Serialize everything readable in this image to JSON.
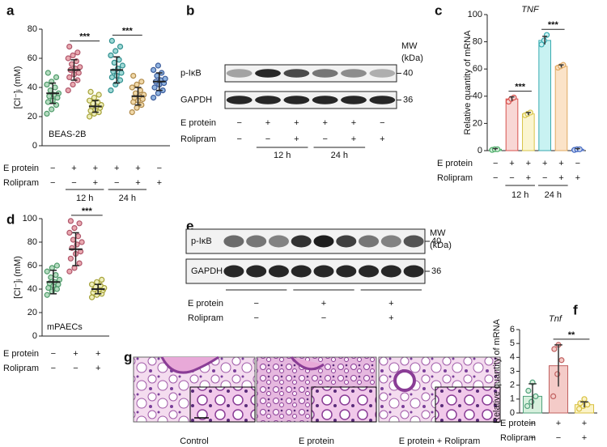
{
  "chart_data": [
    {
      "type": "dot",
      "panel": "a",
      "y_label": "[Cl⁻]ᵢ (mM)",
      "annotation": "BEAS-2B",
      "ylim": [
        0,
        80
      ],
      "yticks": [
        0,
        20,
        40,
        60,
        80
      ],
      "groups": [
        {
          "color": "#4f9a6a",
          "fill": "#b5dcc0",
          "mean": 36,
          "sd": 7,
          "values": [
            22,
            25,
            28,
            30,
            31,
            33,
            34,
            35,
            36,
            38,
            40,
            42,
            44,
            47,
            50
          ]
        },
        {
          "color": "#b0566b",
          "fill": "#e9a9b0",
          "mean": 52,
          "sd": 7,
          "values": [
            38,
            42,
            45,
            47,
            49,
            50,
            52,
            53,
            54,
            56,
            58,
            60,
            62,
            64,
            68
          ]
        },
        {
          "color": "#a6a23a",
          "fill": "#eeeebb",
          "mean": 27,
          "sd": 4,
          "values": [
            20,
            22,
            23,
            24,
            25,
            26,
            27,
            27,
            28,
            29,
            30,
            31,
            33,
            35,
            37
          ]
        },
        {
          "color": "#2f8f8f",
          "fill": "#9fd9d6",
          "mean": 52,
          "sd": 9,
          "values": [
            38,
            42,
            45,
            47,
            48,
            50,
            51,
            53,
            55,
            57,
            59,
            62,
            65,
            68,
            72
          ]
        },
        {
          "color": "#b08a4a",
          "fill": "#f0d8a8",
          "mean": 34,
          "sd": 6,
          "values": [
            23,
            26,
            28,
            30,
            31,
            32,
            33,
            34,
            35,
            36,
            38,
            40,
            42,
            44,
            48
          ]
        },
        {
          "color": "#3b5b9a",
          "fill": "#8fb3e0",
          "mean": 44,
          "sd": 6,
          "values": [
            33,
            36,
            38,
            40,
            42,
            43,
            44,
            45,
            46,
            48,
            50,
            52,
            55
          ]
        }
      ],
      "conditions": [
        {
          "label": "E protein",
          "signs": [
            "−",
            "+",
            "+",
            "+",
            "+",
            "−"
          ]
        },
        {
          "label": "Rolipram",
          "signs": [
            "−",
            "−",
            "+",
            "−",
            "+",
            "+"
          ]
        }
      ],
      "time_labels": [
        {
          "text": "12 h",
          "groups": [
            1,
            2
          ]
        },
        {
          "text": "24 h",
          "groups": [
            3,
            4
          ]
        }
      ],
      "significance": [
        {
          "text": "***",
          "groups": [
            1,
            2
          ]
        },
        {
          "text": "***",
          "groups": [
            3,
            4
          ]
        }
      ]
    },
    {
      "type": "bar",
      "panel": "c",
      "title": "TNF",
      "y_label": "Relative quantity of mRNA",
      "ylim": [
        0,
        100
      ],
      "yticks": [
        0,
        20,
        40,
        60,
        80,
        100
      ],
      "groups": [
        {
          "color": "#4fae6b",
          "fill": "#d7f0dd",
          "mean": 1,
          "sd": 0.5,
          "values": [
            0.5,
            1,
            1
          ]
        },
        {
          "color": "#d9534f",
          "fill": "#f8d7d5",
          "mean": 38,
          "sd": 1.5,
          "values": [
            36,
            38,
            39
          ]
        },
        {
          "color": "#d8c64a",
          "fill": "#fbf5d0",
          "mean": 27,
          "sd": 1,
          "values": [
            26,
            27,
            28
          ]
        },
        {
          "color": "#38aab0",
          "fill": "#c8f2f2",
          "mean": 81,
          "sd": 3,
          "values": [
            78,
            81,
            85
          ]
        },
        {
          "color": "#e0a860",
          "fill": "#fbe3c8",
          "mean": 62,
          "sd": 1,
          "values": [
            61,
            62,
            63
          ]
        },
        {
          "color": "#4066c0",
          "fill": "#d2def7",
          "mean": 1,
          "sd": 0.5,
          "values": [
            0.5,
            1,
            1
          ]
        }
      ],
      "conditions": [
        {
          "label": "E protein",
          "signs": [
            "−",
            "+",
            "+",
            "+",
            "+",
            "−"
          ]
        },
        {
          "label": "Rolipram",
          "signs": [
            "−",
            "−",
            "+",
            "−",
            "+",
            "+"
          ]
        }
      ],
      "time_labels": [
        {
          "text": "12 h",
          "groups": [
            1,
            2
          ]
        },
        {
          "text": "24 h",
          "groups": [
            3,
            4
          ]
        }
      ],
      "significance": [
        {
          "text": "***",
          "groups": [
            1,
            2
          ]
        },
        {
          "text": "***",
          "groups": [
            3,
            4
          ]
        }
      ]
    },
    {
      "type": "dot",
      "panel": "d",
      "y_label": "[Cl⁻]ᵢ (mM)",
      "annotation": "mPAECs",
      "ylim": [
        0,
        100
      ],
      "yticks": [
        0,
        20,
        40,
        60,
        80,
        100
      ],
      "groups": [
        {
          "color": "#4f9a6a",
          "fill": "#b5dcc0",
          "mean": 46,
          "sd": 10,
          "values": [
            35,
            38,
            40,
            41,
            43,
            44,
            45,
            46,
            48,
            50,
            52,
            55,
            58,
            60
          ]
        },
        {
          "color": "#b0566b",
          "fill": "#e9a9b0",
          "mean": 74,
          "sd": 14,
          "values": [
            55,
            58,
            62,
            66,
            70,
            72,
            75,
            78,
            80,
            82,
            85,
            88,
            92,
            96,
            98
          ]
        },
        {
          "color": "#a6a23a",
          "fill": "#eeeebb",
          "mean": 40,
          "sd": 4,
          "values": [
            33,
            35,
            36,
            37,
            38,
            39,
            40,
            40,
            41,
            42,
            43,
            44,
            46,
            48
          ]
        }
      ],
      "conditions": [
        {
          "label": "E protein",
          "signs": [
            "−",
            "+",
            "+"
          ]
        },
        {
          "label": "Rolipram",
          "signs": [
            "−",
            "−",
            "+"
          ]
        }
      ],
      "time_labels": [],
      "significance": [
        {
          "text": "***",
          "groups": [
            1,
            2
          ]
        }
      ]
    },
    {
      "type": "bar",
      "panel": "f",
      "title": "Tnf",
      "y_label": "Relative quantity of mRNA",
      "ylim": [
        0,
        6
      ],
      "yticks": [
        0,
        1,
        2,
        3,
        4,
        5,
        6
      ],
      "groups": [
        {
          "color": "#4fa07a",
          "fill": "#d7f0dd",
          "mean": 1.2,
          "sd": 0.9,
          "values": [
            0.5,
            0.8,
            1.2,
            1.6,
            2.2
          ]
        },
        {
          "color": "#c0605f",
          "fill": "#f4cbc8",
          "mean": 3.4,
          "sd": 1.5,
          "values": [
            1.2,
            2.8,
            3.8,
            4.6,
            4.9
          ]
        },
        {
          "color": "#d8c040",
          "fill": "#fbf3c8",
          "mean": 0.6,
          "sd": 0.2,
          "values": [
            0.3,
            0.5,
            0.6,
            0.7,
            1.0
          ]
        }
      ],
      "conditions": [
        {
          "label": "E protein",
          "signs": [
            "−",
            "+",
            "+"
          ]
        },
        {
          "label": "Rolipram",
          "signs": [
            "−",
            "−",
            "+"
          ]
        }
      ],
      "time_labels": [],
      "significance": [
        {
          "text": "**",
          "groups": [
            1,
            2
          ]
        }
      ]
    }
  ],
  "blots": [
    {
      "panel": "b",
      "mw": [
        "MW",
        "(kDa)"
      ],
      "rows": [
        {
          "label": "p-IκB",
          "marker": "40",
          "intensity": [
            0.35,
            0.9,
            0.75,
            0.55,
            0.45,
            0.3
          ]
        },
        {
          "label": "GAPDH",
          "marker": "36",
          "intensity": [
            0.9,
            0.9,
            0.9,
            0.9,
            0.9,
            0.9
          ]
        }
      ],
      "conditions": [
        {
          "label": "E protein",
          "signs": [
            "−",
            "+",
            "+",
            "+",
            "+",
            "−"
          ]
        },
        {
          "label": "Rolipram",
          "signs": [
            "−",
            "−",
            "+",
            "−",
            "+",
            "+"
          ]
        }
      ],
      "time_labels": [
        {
          "text": "12 h",
          "lanes": [
            1,
            2
          ]
        },
        {
          "text": "24 h",
          "lanes": [
            3,
            4
          ]
        }
      ]
    },
    {
      "panel": "e",
      "mw": [
        "MW",
        "(kDa)"
      ],
      "rows": [
        {
          "label": "p-IκB",
          "marker": "40",
          "intensity": [
            0.6,
            0.55,
            0.5,
            0.85,
            0.95,
            0.8,
            0.55,
            0.5,
            0.7
          ]
        },
        {
          "label": "GAPDH",
          "marker": "36",
          "intensity": [
            0.9,
            0.9,
            0.9,
            0.9,
            0.9,
            0.9,
            0.9,
            0.9,
            0.9
          ]
        }
      ],
      "conditions": [
        {
          "label": "E protein",
          "signs": [
            "−",
            "+",
            "+"
          ]
        },
        {
          "label": "Rolipram",
          "signs": [
            "−",
            "−",
            "+"
          ]
        }
      ],
      "time_labels": []
    }
  ],
  "histology": {
    "panel": "g",
    "captions": [
      "Control",
      "E protein",
      "E protein + Rolipram"
    ]
  }
}
